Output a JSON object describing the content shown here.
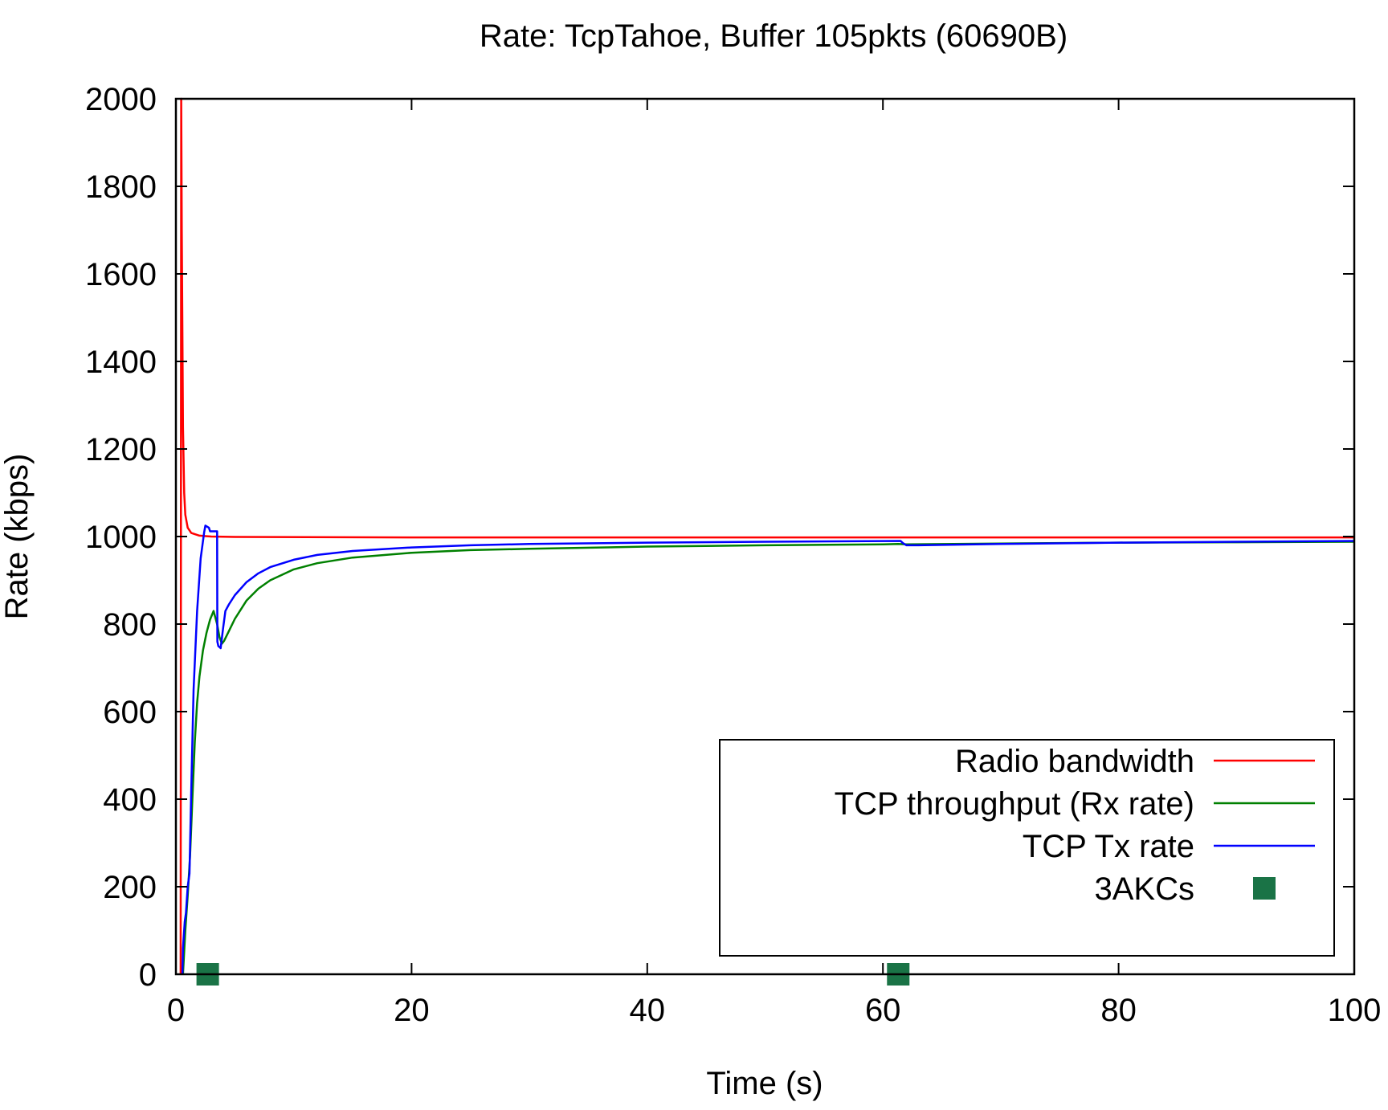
{
  "chart_data": {
    "type": "line",
    "title": "Rate: TcpTahoe, Buffer 105pkts (60690B)",
    "xlabel": "Time (s)",
    "ylabel": "Rate (kbps)",
    "xlim": [
      0,
      100
    ],
    "ylim": [
      0,
      2000
    ],
    "xticks": [
      0,
      20,
      40,
      60,
      80,
      100
    ],
    "yticks": [
      0,
      200,
      400,
      600,
      800,
      1000,
      1200,
      1400,
      1600,
      1800,
      2000
    ],
    "grid": false,
    "legend_position": "bottom-right",
    "series": [
      {
        "name": "Radio bandwidth",
        "color": "#ff0000",
        "style": "line",
        "points": [
          [
            0.4,
            0
          ],
          [
            0.45,
            2000
          ],
          [
            0.5,
            1700
          ],
          [
            0.6,
            1250
          ],
          [
            0.7,
            1100
          ],
          [
            0.8,
            1050
          ],
          [
            1.0,
            1020
          ],
          [
            1.3,
            1008
          ],
          [
            2.0,
            1002
          ],
          [
            3,
            1000
          ],
          [
            5,
            999
          ],
          [
            20,
            998
          ],
          [
            40,
            998
          ],
          [
            60,
            998
          ],
          [
            80,
            998
          ],
          [
            100,
            998
          ]
        ]
      },
      {
        "name": "TCP throughput (Rx rate)",
        "color": "#008000",
        "style": "line",
        "points": [
          [
            0.6,
            0
          ],
          [
            0.8,
            100
          ],
          [
            1.0,
            180
          ],
          [
            1.2,
            270
          ],
          [
            1.4,
            400
          ],
          [
            1.6,
            530
          ],
          [
            1.8,
            620
          ],
          [
            2.0,
            680
          ],
          [
            2.3,
            740
          ],
          [
            2.6,
            780
          ],
          [
            2.9,
            810
          ],
          [
            3.2,
            830
          ],
          [
            3.5,
            800
          ],
          [
            3.7,
            770
          ],
          [
            3.9,
            755
          ],
          [
            4.1,
            762
          ],
          [
            4.5,
            784
          ],
          [
            5,
            812
          ],
          [
            6,
            854
          ],
          [
            7,
            881
          ],
          [
            8,
            900
          ],
          [
            10,
            925
          ],
          [
            12,
            939
          ],
          [
            15,
            952
          ],
          [
            20,
            963
          ],
          [
            25,
            969
          ],
          [
            30,
            972
          ],
          [
            40,
            977
          ],
          [
            50,
            980
          ],
          [
            60,
            982
          ],
          [
            61.3,
            983
          ],
          [
            62,
            982
          ],
          [
            70,
            984
          ],
          [
            80,
            986
          ],
          [
            90,
            987
          ],
          [
            100,
            988
          ]
        ]
      },
      {
        "name": "TCP Tx rate",
        "color": "#0000ff",
        "style": "line",
        "points": [
          [
            0.55,
            0
          ],
          [
            0.6,
            60
          ],
          [
            0.75,
            120
          ],
          [
            0.85,
            140
          ],
          [
            1.0,
            200
          ],
          [
            1.15,
            230
          ],
          [
            1.3,
            420
          ],
          [
            1.5,
            650
          ],
          [
            1.8,
            830
          ],
          [
            2.1,
            950
          ],
          [
            2.4,
            1010
          ],
          [
            2.5,
            1025
          ],
          [
            2.8,
            1020
          ],
          [
            2.9,
            1012
          ],
          [
            3.5,
            1012
          ],
          [
            3.52,
            760
          ],
          [
            3.6,
            750
          ],
          [
            3.8,
            745
          ],
          [
            4.0,
            790
          ],
          [
            4.2,
            830
          ],
          [
            4.5,
            845
          ],
          [
            5,
            866
          ],
          [
            6,
            896
          ],
          [
            7,
            916
          ],
          [
            8,
            930
          ],
          [
            10,
            947
          ],
          [
            12,
            958
          ],
          [
            15,
            967
          ],
          [
            20,
            975
          ],
          [
            25,
            980
          ],
          [
            30,
            983
          ],
          [
            40,
            986
          ],
          [
            50,
            988
          ],
          [
            61.5,
            990
          ],
          [
            61.7,
            985
          ],
          [
            62,
            980
          ],
          [
            63,
            980
          ],
          [
            70,
            983
          ],
          [
            80,
            986
          ],
          [
            90,
            988
          ],
          [
            100,
            990
          ]
        ]
      },
      {
        "name": "3AKCs",
        "color": "#1a7346",
        "style": "square-marker",
        "points": [
          [
            2.7,
            0
          ],
          [
            61.3,
            0
          ]
        ]
      }
    ]
  }
}
